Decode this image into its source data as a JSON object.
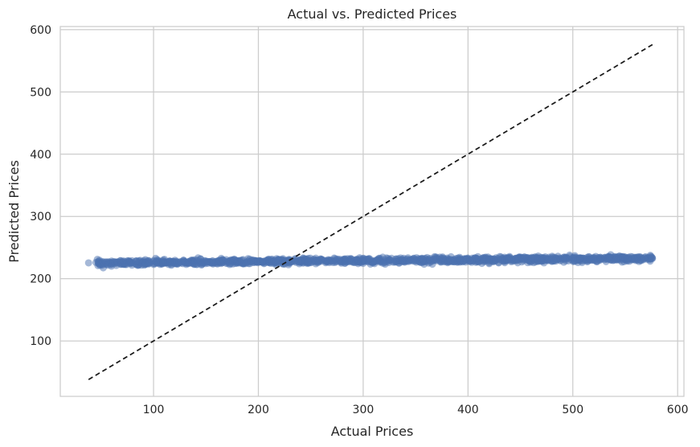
{
  "chart_data": {
    "type": "scatter",
    "title": "Actual vs. Predicted Prices",
    "xlabel": "Actual Prices",
    "ylabel": "Predicted Prices",
    "xlim": [
      11,
      606
    ],
    "ylim": [
      11,
      605
    ],
    "x_ticks": [
      100,
      200,
      300,
      400,
      500,
      600
    ],
    "x_tick_labels": [
      "100",
      "200",
      "300",
      "400",
      "500",
      "600"
    ],
    "y_ticks": [
      100,
      200,
      300,
      400,
      500,
      600
    ],
    "y_tick_labels": [
      "100",
      "200",
      "300",
      "400",
      "500",
      "600"
    ],
    "grid": true,
    "series": [
      {
        "kind": "points",
        "color": "#4c72b0",
        "alpha": 0.5,
        "x_range": [
          38,
          576
        ],
        "y_trend": {
          "slope": 0.0146,
          "intercept": 224.9,
          "noise": 2.2
        },
        "count": 1400,
        "points": [
          [
            38,
            225.4
          ],
          [
            45,
            226.1
          ],
          [
            60,
            225.8
          ],
          [
            75,
            226.3
          ],
          [
            90,
            226.7
          ],
          [
            110,
            227.0
          ],
          [
            130,
            227.2
          ],
          [
            150,
            227.5
          ],
          [
            175,
            227.9
          ],
          [
            200,
            228.2
          ],
          [
            225,
            228.4
          ],
          [
            250,
            228.7
          ],
          [
            275,
            229.0
          ],
          [
            300,
            229.3
          ],
          [
            325,
            229.6
          ],
          [
            350,
            230.0
          ],
          [
            375,
            230.2
          ],
          [
            400,
            230.5
          ],
          [
            425,
            230.8
          ],
          [
            450,
            231.1
          ],
          [
            475,
            231.4
          ],
          [
            500,
            231.7
          ],
          [
            525,
            232.0
          ],
          [
            550,
            232.3
          ],
          [
            576,
            232.6
          ]
        ]
      },
      {
        "kind": "line",
        "style": "dashed",
        "color": "#1a1a1a",
        "x": [
          38,
          576
        ],
        "y": [
          38,
          576
        ]
      }
    ]
  }
}
